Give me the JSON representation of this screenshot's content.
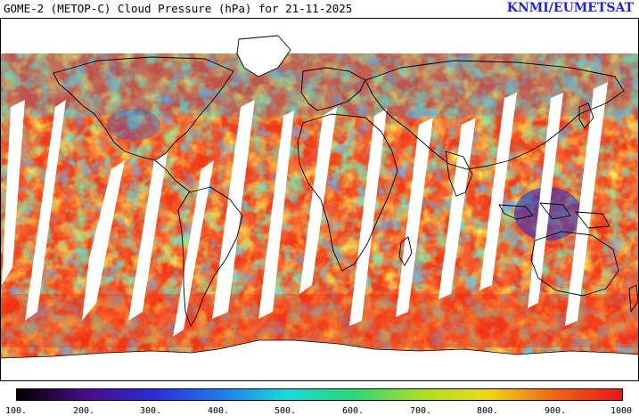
{
  "header": {
    "title": "GOME-2 (METOP-C) Cloud Pressure (hPa) for 21-11-2025",
    "brand": "KNMI/EUMETSAT"
  },
  "colorbar": {
    "ticks": [
      "100.",
      "200.",
      "300.",
      "400.",
      "500.",
      "600.",
      "700.",
      "800.",
      "900.",
      "1000"
    ],
    "colors": [
      "#000000",
      "#4a0a88",
      "#2a2ad8",
      "#1e78f0",
      "#14dcdc",
      "#28d878",
      "#a8e020",
      "#f0d814",
      "#f06414",
      "#f01414"
    ]
  },
  "map": {
    "land_fill": "#ffffff",
    "coast_color": "#000000",
    "no_data_color": "#ffffff"
  }
}
